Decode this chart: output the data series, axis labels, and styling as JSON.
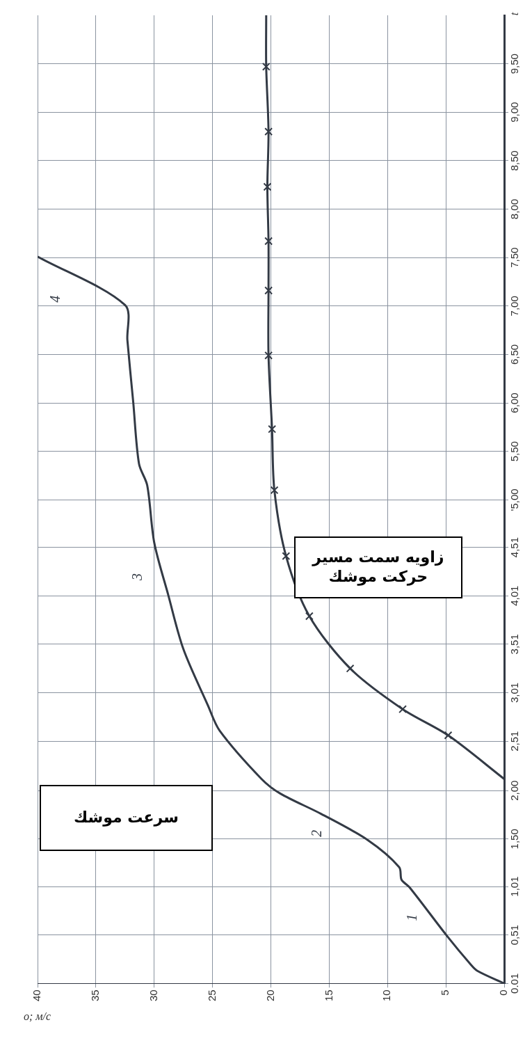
{
  "chart_data": {
    "type": "line",
    "orientation": "horizontal",
    "xlabel": "o; м/с",
    "ylabel": "t",
    "xlim": [
      40,
      0
    ],
    "xticks": [
      40,
      35,
      30,
      25,
      20,
      15,
      10,
      5,
      0
    ],
    "ylim": [
      0.01,
      10
    ],
    "yticks": [
      {
        "value": 0.01,
        "label": "0.01"
      },
      {
        "value": 0.51,
        "label": "0,51"
      },
      {
        "value": 1.01,
        "label": "1,01"
      },
      {
        "value": 1.5,
        "label": "1,50"
      },
      {
        "value": 2,
        "label": "2,00"
      },
      {
        "value": 2.51,
        "label": "2,51"
      },
      {
        "value": 3.01,
        "label": "3,01"
      },
      {
        "value": 3.51,
        "label": "3,51"
      },
      {
        "value": 4.01,
        "label": "4,01"
      },
      {
        "value": 4.51,
        "label": "4,51"
      },
      {
        "value": 5,
        "label": "'5,00"
      },
      {
        "value": 5.5,
        "label": "5,50"
      },
      {
        "value": 6,
        "label": "6,00"
      },
      {
        "value": 6.5,
        "label": "6,50"
      },
      {
        "value": 7,
        "label": "7,00"
      },
      {
        "value": 7.5,
        "label": "7,50"
      },
      {
        "value": 8,
        "label": "8,00"
      },
      {
        "value": 8.5,
        "label": "8,50"
      },
      {
        "value": 9,
        "label": "9,00"
      },
      {
        "value": 9.5,
        "label": "9,50"
      }
    ],
    "grid": true,
    "legend": false,
    "series": [
      {
        "name": "سرعت موشك",
        "color": "#333a45",
        "marker": "none",
        "x": [
          0.01,
          0.14,
          0.21,
          0.5,
          1.0,
          1.08,
          1.21,
          1.49,
          1.76,
          1.97,
          2.12,
          2.62,
          2.88,
          3.46,
          4.02,
          4.56,
          5.15,
          5.37,
          6.01,
          6.65,
          7.01,
          7.51
        ],
        "values": [
          0,
          2.3,
          2.9,
          4.9,
          8.1,
          8.8,
          9.0,
          11.7,
          15.7,
          19.2,
          20.8,
          24.4,
          25.4,
          27.5,
          28.8,
          30.0,
          30.6,
          31.3,
          31.8,
          32.3,
          32.5,
          40
        ]
      },
      {
        "name": "زاویه سمت مسیر حرکت موشك",
        "color": "#333a45",
        "marker": "cross",
        "x": [
          2.12,
          2.57,
          2.84,
          3.26,
          3.8,
          4.42,
          5.1,
          5.73,
          6.49,
          7.16,
          7.67,
          8.23,
          8.8,
          9.47,
          10
        ],
        "values": [
          0,
          4.8,
          8.7,
          13.2,
          16.7,
          18.7,
          19.7,
          19.9,
          20.2,
          20.2,
          20.2,
          20.3,
          20.2,
          20.4,
          20.4
        ]
      }
    ],
    "annotations": [
      "1",
      "2",
      "3",
      "4"
    ]
  }
}
